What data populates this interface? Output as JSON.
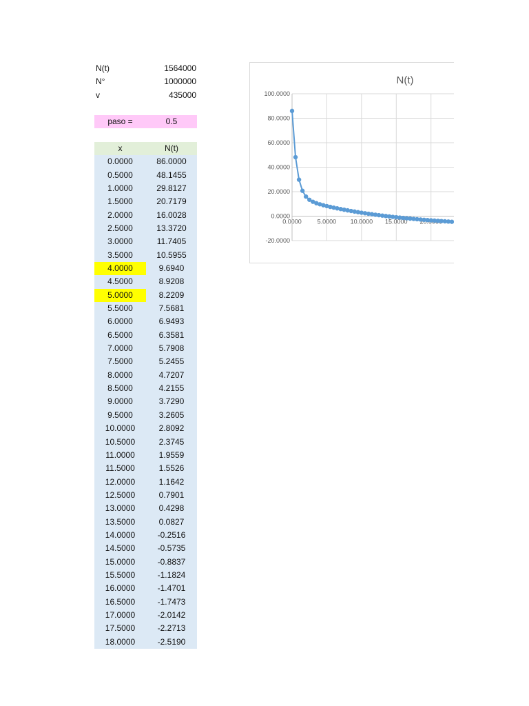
{
  "params": [
    {
      "label": "N(t)",
      "value": "1564000"
    },
    {
      "label": "N°",
      "value": "1000000"
    },
    {
      "label": "v",
      "value": "435000"
    }
  ],
  "paso": {
    "label": "paso =",
    "value": "0.5"
  },
  "table": {
    "headers": [
      "x",
      "N(t)"
    ],
    "rows": [
      {
        "x": "0.0000",
        "y": "86.0000",
        "highlight": false
      },
      {
        "x": "0.5000",
        "y": "48.1455",
        "highlight": false
      },
      {
        "x": "1.0000",
        "y": "29.8127",
        "highlight": false
      },
      {
        "x": "1.5000",
        "y": "20.7179",
        "highlight": false
      },
      {
        "x": "2.0000",
        "y": "16.0028",
        "highlight": false
      },
      {
        "x": "2.5000",
        "y": "13.3720",
        "highlight": false
      },
      {
        "x": "3.0000",
        "y": "11.7405",
        "highlight": false
      },
      {
        "x": "3.5000",
        "y": "10.5955",
        "highlight": false
      },
      {
        "x": "4.0000",
        "y": "9.6940",
        "highlight": true
      },
      {
        "x": "4.5000",
        "y": "8.9208",
        "highlight": false
      },
      {
        "x": "5.0000",
        "y": "8.2209",
        "highlight": true
      },
      {
        "x": "5.5000",
        "y": "7.5681",
        "highlight": false
      },
      {
        "x": "6.0000",
        "y": "6.9493",
        "highlight": false
      },
      {
        "x": "6.5000",
        "y": "6.3581",
        "highlight": false
      },
      {
        "x": "7.0000",
        "y": "5.7908",
        "highlight": false
      },
      {
        "x": "7.5000",
        "y": "5.2455",
        "highlight": false
      },
      {
        "x": "8.0000",
        "y": "4.7207",
        "highlight": false
      },
      {
        "x": "8.5000",
        "y": "4.2155",
        "highlight": false
      },
      {
        "x": "9.0000",
        "y": "3.7290",
        "highlight": false
      },
      {
        "x": "9.5000",
        "y": "3.2605",
        "highlight": false
      },
      {
        "x": "10.0000",
        "y": "2.8092",
        "highlight": false
      },
      {
        "x": "10.5000",
        "y": "2.3745",
        "highlight": false
      },
      {
        "x": "11.0000",
        "y": "1.9559",
        "highlight": false
      },
      {
        "x": "11.5000",
        "y": "1.5526",
        "highlight": false
      },
      {
        "x": "12.0000",
        "y": "1.1642",
        "highlight": false
      },
      {
        "x": "12.5000",
        "y": "0.7901",
        "highlight": false
      },
      {
        "x": "13.0000",
        "y": "0.4298",
        "highlight": false
      },
      {
        "x": "13.5000",
        "y": "0.0827",
        "highlight": false
      },
      {
        "x": "14.0000",
        "y": "-0.2516",
        "highlight": false
      },
      {
        "x": "14.5000",
        "y": "-0.5735",
        "highlight": false
      },
      {
        "x": "15.0000",
        "y": "-0.8837",
        "highlight": false
      },
      {
        "x": "15.5000",
        "y": "-1.1824",
        "highlight": false
      },
      {
        "x": "16.0000",
        "y": "-1.4701",
        "highlight": false
      },
      {
        "x": "16.5000",
        "y": "-1.7473",
        "highlight": false
      },
      {
        "x": "17.0000",
        "y": "-2.0142",
        "highlight": false
      },
      {
        "x": "17.5000",
        "y": "-2.2713",
        "highlight": false
      },
      {
        "x": "18.0000",
        "y": "-2.5190",
        "highlight": false
      }
    ]
  },
  "colors": {
    "series": "#5b9bd5",
    "paso_bg": "#ffc9f8",
    "header_bg": "#e2efd9",
    "table_bg": "#dce9f5",
    "highlight": "#ffff00",
    "grid": "#d9d9d9"
  },
  "chart_data": {
    "type": "scatter",
    "title": "N(t)",
    "xlabel": "",
    "ylabel": "",
    "xlim": [
      0,
      23.3
    ],
    "ylim": [
      -20,
      100
    ],
    "x_ticks": [
      "0.0000",
      "5.0000",
      "10.0000",
      "15.0000",
      "20.0000"
    ],
    "y_ticks": [
      "100.0000",
      "80.0000",
      "60.0000",
      "40.0000",
      "20.0000",
      "0.0000",
      "-20.0000"
    ],
    "grid": true,
    "series": [
      {
        "x": [
          0,
          0.5,
          1,
          1.5,
          2,
          2.5,
          3,
          3.5,
          4,
          4.5,
          5,
          5.5,
          6,
          6.5,
          7,
          7.5,
          8,
          8.5,
          9,
          9.5,
          10,
          10.5,
          11,
          11.5,
          12,
          12.5,
          13,
          13.5,
          14,
          14.5,
          15,
          15.5,
          16,
          16.5,
          17,
          17.5,
          18,
          18.5,
          19,
          19.5,
          20,
          20.5,
          21,
          21.5,
          22,
          22.5,
          23
        ],
        "y": [
          86.0,
          48.1455,
          29.8127,
          20.7179,
          16.0028,
          13.372,
          11.7405,
          10.5955,
          9.694,
          8.9208,
          8.2209,
          7.5681,
          6.9493,
          6.3581,
          5.7908,
          5.2455,
          4.7207,
          4.2155,
          3.729,
          3.2605,
          2.8092,
          2.3745,
          1.9559,
          1.5526,
          1.1642,
          0.7901,
          0.4298,
          0.0827,
          -0.2516,
          -0.5735,
          -0.8837,
          -1.1824,
          -1.4701,
          -1.7473,
          -2.0142,
          -2.2713,
          -2.519,
          -2.76,
          -2.99,
          -3.21,
          -3.43,
          -3.64,
          -3.84,
          -4.04,
          -4.23,
          -4.42,
          -4.6
        ]
      }
    ]
  }
}
